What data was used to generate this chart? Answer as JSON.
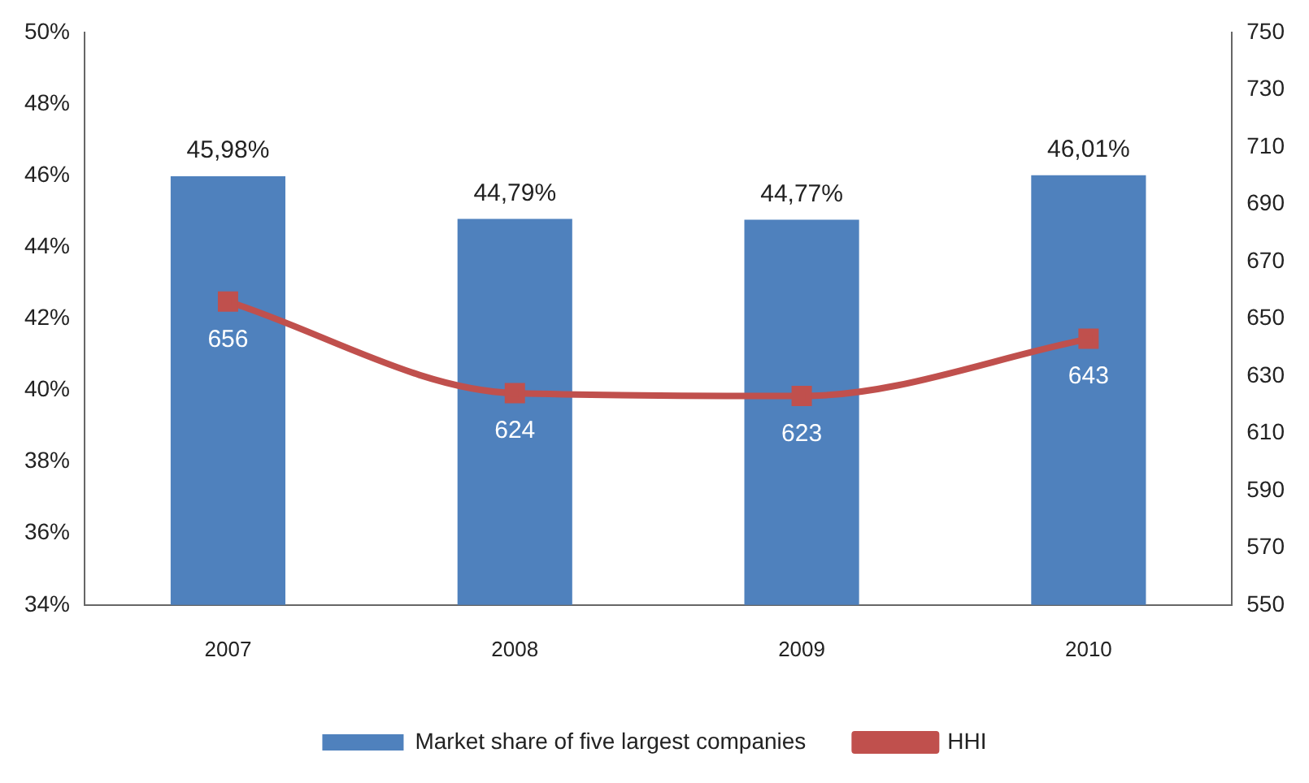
{
  "chart_data": {
    "type": "bar",
    "categories": [
      "2007",
      "2008",
      "2009",
      "2010"
    ],
    "series": [
      {
        "name": "Market share of five largest companies",
        "color": "#4f81bd",
        "values": [
          45.98,
          44.79,
          44.77,
          46.01
        ],
        "value_labels": [
          "45,98%",
          "44,79%",
          "44,77%",
          "46,01%"
        ]
      },
      {
        "name": "HHI",
        "type": "line",
        "axis": "y2",
        "color": "#c0504d",
        "marker": "square",
        "values": [
          656,
          624,
          623,
          643
        ],
        "value_labels": [
          "656",
          "624",
          "623",
          "643"
        ]
      }
    ],
    "ylim": [
      34,
      50
    ],
    "yticks": [
      {
        "value": 34,
        "label": "34%"
      },
      {
        "value": 36,
        "label": "36%"
      },
      {
        "value": 38,
        "label": "38%"
      },
      {
        "value": 40,
        "label": "40%"
      },
      {
        "value": 42,
        "label": "42%"
      },
      {
        "value": 44,
        "label": "44%"
      },
      {
        "value": 46,
        "label": "46%"
      },
      {
        "value": 48,
        "label": "48%"
      },
      {
        "value": 50,
        "label": "50%"
      }
    ],
    "y2lim": [
      550,
      750
    ],
    "y2ticks": [
      550,
      570,
      590,
      610,
      630,
      650,
      670,
      690,
      710,
      730,
      750
    ],
    "grid": false,
    "legend": "bottom"
  }
}
